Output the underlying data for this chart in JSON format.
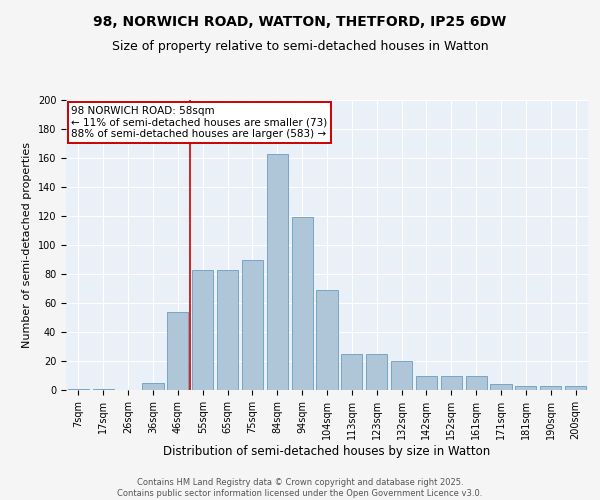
{
  "title_line1": "98, NORWICH ROAD, WATTON, THETFORD, IP25 6DW",
  "title_line2": "Size of property relative to semi-detached houses in Watton",
  "xlabel": "Distribution of semi-detached houses by size in Watton",
  "ylabel": "Number of semi-detached properties",
  "categories": [
    "7sqm",
    "17sqm",
    "26sqm",
    "36sqm",
    "46sqm",
    "55sqm",
    "65sqm",
    "75sqm",
    "84sqm",
    "94sqm",
    "104sqm",
    "113sqm",
    "123sqm",
    "132sqm",
    "142sqm",
    "152sqm",
    "161sqm",
    "171sqm",
    "181sqm",
    "190sqm",
    "200sqm"
  ],
  "values": [
    1,
    1,
    0,
    5,
    54,
    83,
    83,
    90,
    163,
    119,
    69,
    25,
    25,
    20,
    10,
    10,
    10,
    4,
    3,
    3,
    3
  ],
  "bar_color": "#aec6d8",
  "bar_edge_color": "#6a9dbf",
  "background_color": "#eaf0f8",
  "grid_color": "#ffffff",
  "vline_x_index": 4.5,
  "annotation_text_line1": "98 NORWICH ROAD: 58sqm",
  "annotation_text_line2": "← 11% of semi-detached houses are smaller (73)",
  "annotation_text_line3": "88% of semi-detached houses are larger (583) →",
  "annotation_box_facecolor": "#ffffff",
  "annotation_box_edgecolor": "#cc0000",
  "vline_color": "#cc0000",
  "ylim": [
    0,
    200
  ],
  "yticks": [
    0,
    20,
    40,
    60,
    80,
    100,
    120,
    140,
    160,
    180,
    200
  ],
  "footer_line1": "Contains HM Land Registry data © Crown copyright and database right 2025.",
  "footer_line2": "Contains public sector information licensed under the Open Government Licence v3.0.",
  "title_fontsize": 10,
  "subtitle_fontsize": 9,
  "ylabel_fontsize": 8,
  "xlabel_fontsize": 8.5,
  "tick_fontsize": 7,
  "annotation_fontsize": 7.5,
  "footer_fontsize": 6
}
